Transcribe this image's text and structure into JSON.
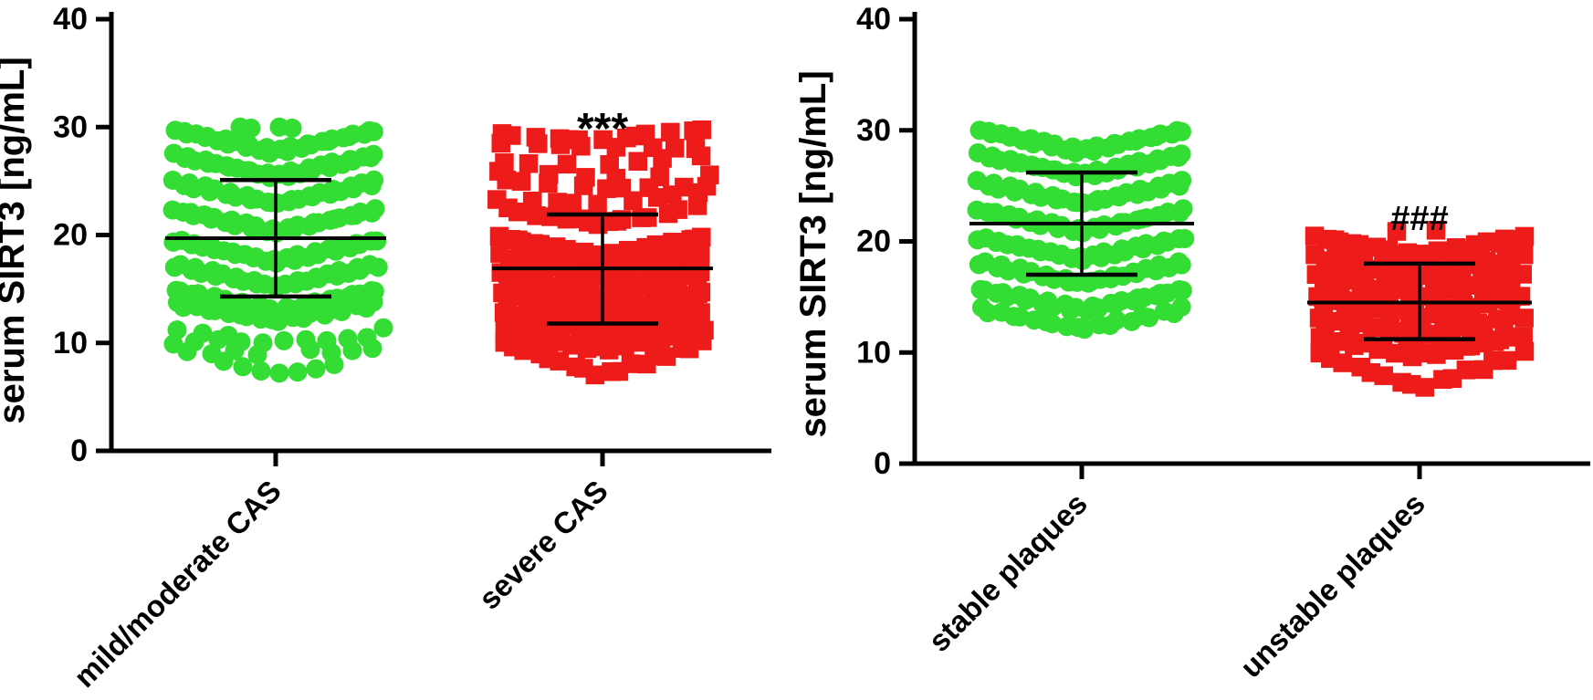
{
  "figure": {
    "background": "#ffffff",
    "axis_color": "#000000"
  },
  "chart_data": [
    {
      "type": "scatter",
      "panel": "left",
      "title": "",
      "xlabel": "",
      "ylabel": "serum SIRT3 [ng/mL]",
      "ylim": [
        0,
        40
      ],
      "yticks": [
        0,
        10,
        20,
        30,
        40
      ],
      "grid": false,
      "legend": false,
      "categories": [
        "mild/moderate CAS",
        "severe CAS"
      ],
      "groups": [
        {
          "category": "mild/moderate CAS",
          "marker": "circle",
          "color": "#33dd33",
          "mean": 19.7,
          "errorbar_top": 25.1,
          "errorbar_bottom": 14.3,
          "significance": "",
          "significance_y": null,
          "bands": [
            {
              "edge": 29.7,
              "dip": 2.0,
              "n": 30
            },
            {
              "edge": 27.4,
              "dip": 2.0,
              "n": 30
            },
            {
              "edge": 24.9,
              "dip": 2.0,
              "n": 30
            },
            {
              "edge": 22.3,
              "dip": 2.0,
              "n": 30
            },
            {
              "edge": 19.5,
              "dip": 2.0,
              "n": 30
            },
            {
              "edge": 17.2,
              "dip": 2.0,
              "n": 30
            },
            {
              "edge": 14.9,
              "dip": 2.0,
              "n": 28
            },
            {
              "edge": 13.6,
              "dip": 1.6,
              "n": 20
            }
          ],
          "rows": [],
          "points": [
            [
              -39,
              30.0
            ],
            [
              -27,
              29.9
            ],
            [
              4,
              30.0
            ],
            [
              18,
              29.9
            ],
            [
              -108,
              11.2
            ],
            [
              -80,
              10.9
            ],
            [
              -52,
              10.7
            ],
            [
              118,
              11.4
            ],
            [
              -112,
              9.9
            ],
            [
              -89,
              10.1
            ],
            [
              -63,
              10.3
            ],
            [
              -38,
              10.1
            ],
            [
              -14,
              10.0
            ],
            [
              9,
              10.2
            ],
            [
              33,
              10.3
            ],
            [
              56,
              10.2
            ],
            [
              79,
              10.4
            ],
            [
              100,
              10.5
            ],
            [
              -97,
              9.2
            ],
            [
              -70,
              9.0
            ],
            [
              -45,
              9.3
            ],
            [
              -20,
              8.9
            ],
            [
              38,
              9.4
            ],
            [
              61,
              9.1
            ],
            [
              84,
              9.3
            ],
            [
              106,
              9.5
            ],
            [
              -57,
              8.3
            ],
            [
              -36,
              7.8
            ],
            [
              -16,
              7.4
            ],
            [
              4,
              7.2
            ],
            [
              24,
              7.3
            ],
            [
              44,
              7.6
            ],
            [
              64,
              8.0
            ]
          ]
        },
        {
          "category": "severe CAS",
          "marker": "square",
          "color": "#ee1b1b",
          "mean": 16.9,
          "errorbar_top": 21.9,
          "errorbar_bottom": 11.8,
          "significance": "***",
          "significance_y": 29.8,
          "bands": [
            {
              "edge": 19.8,
              "dip": 1.9,
              "n": 28
            },
            {
              "edge": 18.1,
              "dip": 1.9,
              "n": 28
            },
            {
              "edge": 16.4,
              "dip": 1.9,
              "n": 28
            },
            {
              "edge": 14.7,
              "dip": 1.9,
              "n": 28
            },
            {
              "edge": 13.0,
              "dip": 1.9,
              "n": 26
            },
            {
              "edge": 11.3,
              "dip": 1.9,
              "n": 24
            },
            {
              "edge": 10.0,
              "dip": 3.0,
              "n": 18
            }
          ],
          "rows": [
            {
              "y": 29.4,
              "n": 13,
              "dip": 0.3,
              "wf": 1.0
            },
            {
              "y": 28.2,
              "n": 8,
              "dip": 0.3,
              "wf": 1.0
            },
            {
              "y": 27.0,
              "n": 7,
              "dip": 0.5,
              "wf": 1.0
            },
            {
              "y": 25.9,
              "n": 6,
              "dip": 0.4,
              "wf": 1.0
            },
            {
              "y": 24.8,
              "n": 9,
              "dip": 0.7,
              "wf": 1.0
            },
            {
              "y": 23.6,
              "n": 9,
              "dip": 0.9,
              "wf": 1.0
            },
            {
              "y": 22.5,
              "n": 11,
              "dip": 1.2,
              "wf": 1.0
            },
            {
              "y": 21.4,
              "n": 5,
              "dip": 0.5,
              "wf": 0.45
            }
          ],
          "points": []
        }
      ]
    },
    {
      "type": "scatter",
      "panel": "right",
      "title": "",
      "xlabel": "",
      "ylabel": "serum SIRT3 [ng/mL]",
      "ylim": [
        0,
        40
      ],
      "yticks": [
        0,
        10,
        20,
        30,
        40
      ],
      "grid": false,
      "legend": false,
      "categories": [
        "stable plaques",
        "unstable plaques"
      ],
      "groups": [
        {
          "category": "stable plaques",
          "marker": "circle",
          "color": "#33dd33",
          "mean": 21.6,
          "errorbar_top": 26.2,
          "errorbar_bottom": 17.0,
          "significance": "",
          "significance_y": null,
          "bands": [
            {
              "edge": 30.0,
              "dip": 1.9,
              "n": 30
            },
            {
              "edge": 27.8,
              "dip": 1.9,
              "n": 30
            },
            {
              "edge": 25.3,
              "dip": 1.9,
              "n": 30
            },
            {
              "edge": 22.8,
              "dip": 1.9,
              "n": 30
            },
            {
              "edge": 20.3,
              "dip": 1.9,
              "n": 30
            },
            {
              "edge": 18.1,
              "dip": 1.9,
              "n": 28
            },
            {
              "edge": 15.7,
              "dip": 1.9,
              "n": 28
            },
            {
              "edge": 13.9,
              "dip": 1.8,
              "n": 20
            }
          ],
          "rows": [],
          "points": []
        },
        {
          "category": "unstable plaques",
          "marker": "square",
          "color": "#ee1b1b",
          "mean": 14.5,
          "errorbar_top": 18.0,
          "errorbar_bottom": 11.2,
          "significance": "###",
          "significance_y": 22.0,
          "bands": [
            {
              "edge": 20.4,
              "dip": 1.8,
              "n": 26
            },
            {
              "edge": 18.6,
              "dip": 1.8,
              "n": 26
            },
            {
              "edge": 16.9,
              "dip": 1.8,
              "n": 26
            },
            {
              "edge": 15.1,
              "dip": 1.8,
              "n": 26
            },
            {
              "edge": 13.3,
              "dip": 1.8,
              "n": 24
            },
            {
              "edge": 11.5,
              "dip": 1.8,
              "n": 22
            },
            {
              "edge": 9.9,
              "dip": 3.1,
              "n": 16
            }
          ],
          "rows": [],
          "points": [
            [
              -25,
              20.9
            ],
            [
              18,
              21.0
            ]
          ]
        }
      ]
    }
  ]
}
